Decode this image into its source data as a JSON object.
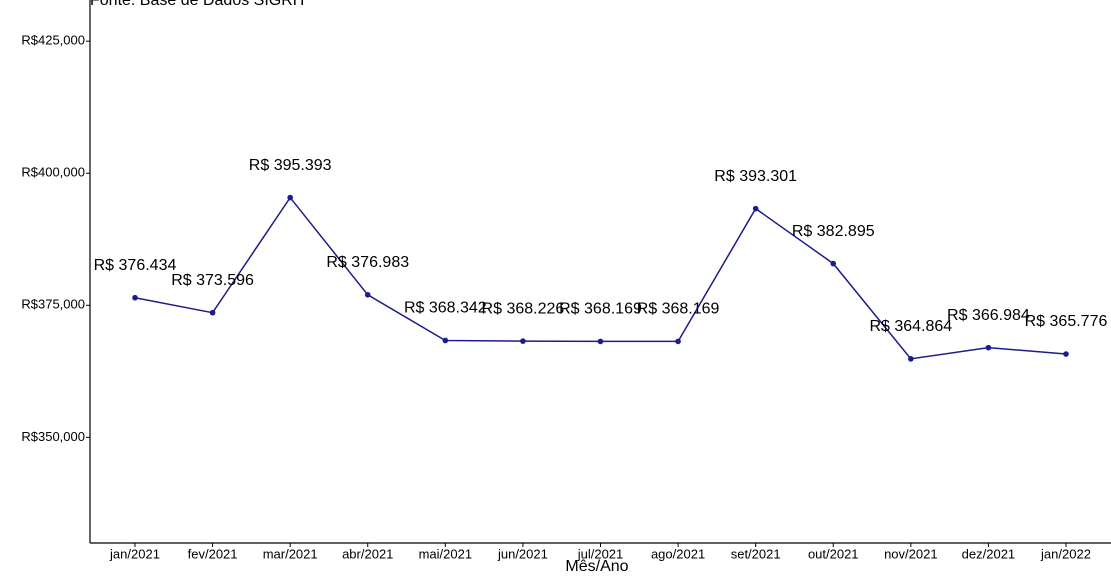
{
  "chart_data": {
    "type": "line",
    "subtitle": "Fonte: Base de Dados SIGRH",
    "x_label": "Mês/Ano",
    "categories": [
      "jan/2021",
      "fev/2021",
      "mar/2021",
      "abr/2021",
      "mai/2021",
      "jun/2021",
      "jul/2021",
      "ago/2021",
      "set/2021",
      "out/2021",
      "nov/2021",
      "dez/2021",
      "jan/2022"
    ],
    "series": [
      {
        "color": "#1c1c8c",
        "values": [
          376434,
          373596,
          395393,
          376983,
          368342,
          368226,
          368169,
          368169,
          393301,
          382895,
          364864,
          366984,
          365776
        ],
        "value_labels": [
          "R$ 376.434",
          "R$ 373.596",
          "R$ 395.393",
          "R$ 376.983",
          "R$ 368.342",
          "R$ 368.226",
          "R$ 368.169",
          "R$ 368.169",
          "R$ 393.301",
          "R$ 382.895",
          "R$ 364.864",
          "R$ 366.984",
          "R$ 365.776"
        ]
      }
    ],
    "ylim": [
      330000,
      432800
    ],
    "yticks": [
      {
        "value": 350000,
        "label": "R$350,000"
      },
      {
        "value": 375000,
        "label": "R$375,000"
      },
      {
        "value": 400000,
        "label": "R$400,000"
      },
      {
        "value": 425000,
        "label": "R$425,000"
      }
    ],
    "grid": false
  }
}
